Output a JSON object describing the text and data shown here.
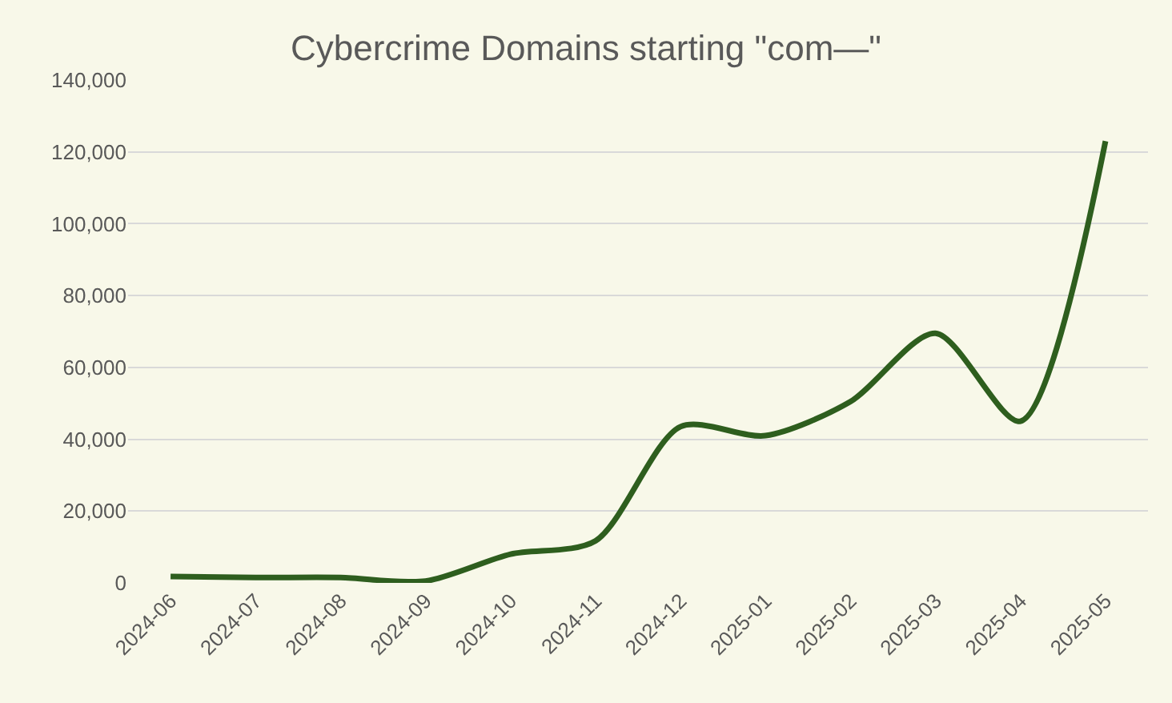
{
  "chart_data": {
    "type": "line",
    "title": "Cybercrime Domains starting \"com—\"",
    "categories": [
      "2024-06",
      "2024-07",
      "2024-08",
      "2024-09",
      "2024-10",
      "2024-11",
      "2024-12",
      "2025-01",
      "2025-02",
      "2025-03",
      "2025-04",
      "2025-05"
    ],
    "series": [
      {
        "color": "#2e5e1e",
        "values": [
          1800,
          1500,
          1500,
          500,
          8000,
          11700,
          43500,
          41000,
          50500,
          69500,
          45000,
          123000
        ]
      }
    ],
    "ylim": [
      0,
      140000
    ],
    "yticks": [
      {
        "value": 0,
        "label": "0"
      },
      {
        "value": 20000,
        "label": "20,000"
      },
      {
        "value": 40000,
        "label": "40,000"
      },
      {
        "value": 60000,
        "label": "60,000"
      },
      {
        "value": 80000,
        "label": "80,000"
      },
      {
        "value": 100000,
        "label": "100,000"
      },
      {
        "value": 120000,
        "label": "120,000"
      },
      {
        "value": 140000,
        "label": "140,000"
      }
    ],
    "grid": "y",
    "legend": false,
    "marker": "none",
    "line_style": "solid"
  }
}
